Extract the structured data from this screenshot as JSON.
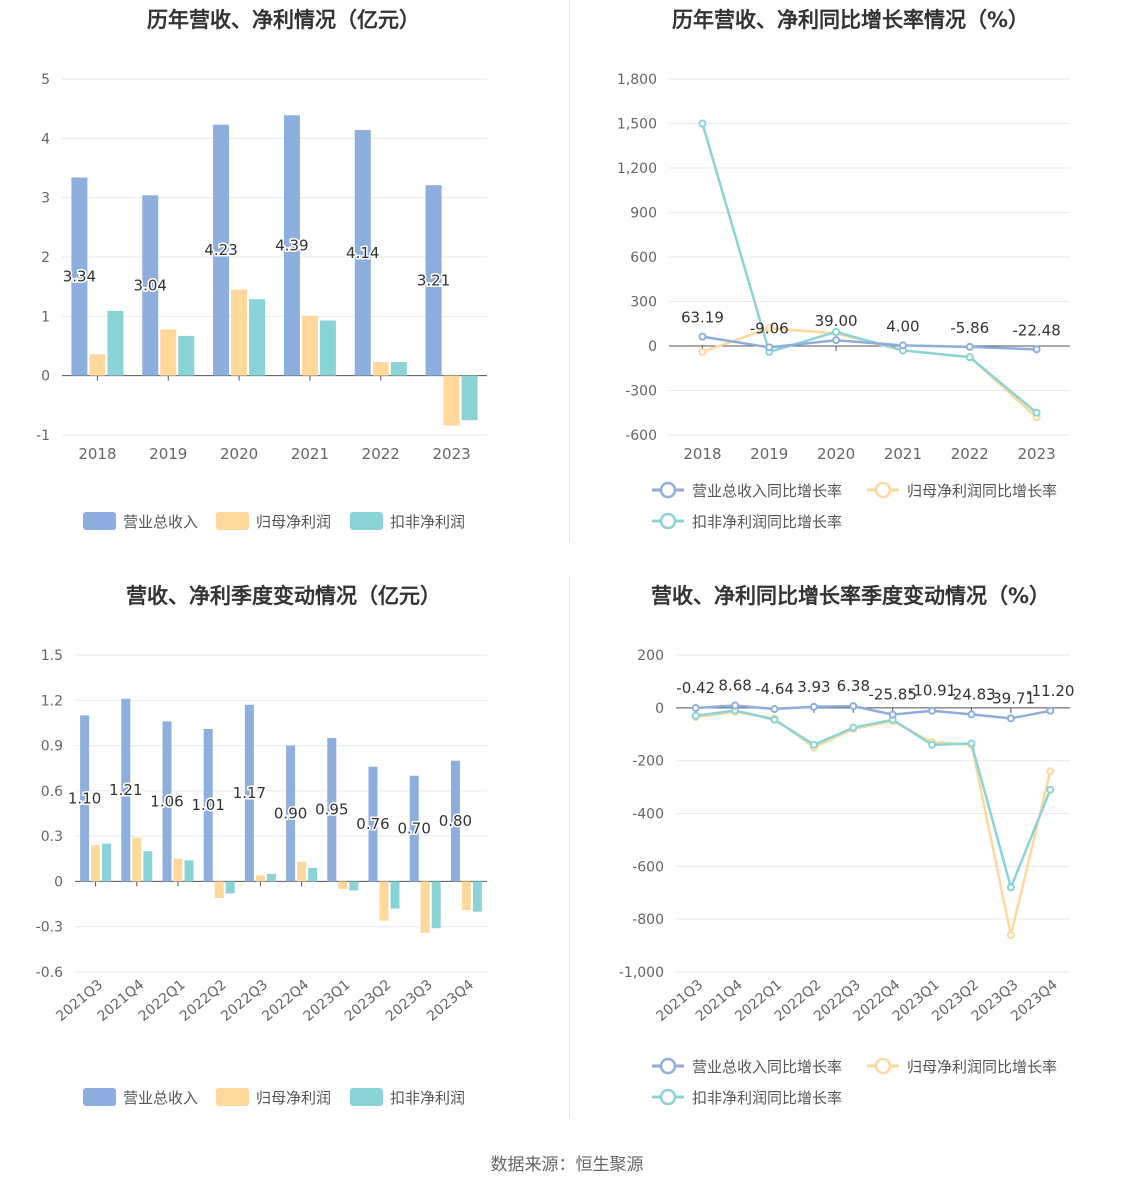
{
  "source": "数据来源：恒生聚源",
  "chart_data": [
    {
      "type": "bar",
      "title": "历年营收、净利情况（亿元）",
      "categories": [
        "2018",
        "2019",
        "2020",
        "2021",
        "2022",
        "2023"
      ],
      "ylim": [
        -1,
        5
      ],
      "yticks": [
        "5",
        "4",
        "3",
        "2",
        "1",
        "0",
        "-1"
      ],
      "series": [
        {
          "name": "营业总收入",
          "color": "#8eaedd",
          "values": [
            3.34,
            3.04,
            4.23,
            4.39,
            4.14,
            3.21
          ],
          "labels": [
            "3.34",
            "3.04",
            "4.23",
            "4.39",
            "4.14",
            "3.21"
          ]
        },
        {
          "name": "归母净利润",
          "color": "#ffd89c",
          "values": [
            0.36,
            0.78,
            1.45,
            1.01,
            0.23,
            -0.84
          ]
        },
        {
          "name": "扣非净利润",
          "color": "#8ad4d8",
          "values": [
            1.09,
            0.67,
            1.29,
            0.93,
            0.23,
            -0.75
          ]
        }
      ],
      "legend": "bottom"
    },
    {
      "type": "line",
      "title": "历年营收、净利同比增长率情况（%）",
      "categories": [
        "2018",
        "2019",
        "2020",
        "2021",
        "2022",
        "2023"
      ],
      "ylim": [
        -600,
        1800
      ],
      "yticks": [
        "1,800",
        "1,500",
        "1,200",
        "900",
        "600",
        "300",
        "0",
        "-300",
        "-600"
      ],
      "series": [
        {
          "name": "营业总收入同比增长率",
          "color": "#8eaedd",
          "values": [
            63.19,
            -9.06,
            39.0,
            4.0,
            -5.86,
            -22.48
          ],
          "labels": [
            "63.19",
            "-9.06",
            "39.00",
            "4.00",
            "-5.86",
            "-22.48"
          ]
        },
        {
          "name": "归母净利润同比增长率",
          "color": "#ffd89c",
          "values": [
            -40,
            120,
            85,
            -30,
            -75,
            -480
          ]
        },
        {
          "name": "扣非净利润同比增长率",
          "color": "#8ad4d8",
          "values": [
            1500,
            -40,
            95,
            -30,
            -75,
            -450
          ]
        }
      ],
      "legend": "bottom"
    },
    {
      "type": "bar",
      "title": "营收、净利季度变动情况（亿元）",
      "categories": [
        "2021Q3",
        "2021Q4",
        "2022Q1",
        "2022Q2",
        "2022Q3",
        "2022Q4",
        "2023Q1",
        "2023Q2",
        "2023Q3",
        "2023Q4"
      ],
      "ylim": [
        -0.6,
        1.5
      ],
      "yticks": [
        "1.5",
        "1.2",
        "0.9",
        "0.6",
        "0.3",
        "0",
        "-0.3",
        "-0.6"
      ],
      "series": [
        {
          "name": "营业总收入",
          "color": "#8eaedd",
          "values": [
            1.1,
            1.21,
            1.06,
            1.01,
            1.17,
            0.9,
            0.95,
            0.76,
            0.7,
            0.8
          ],
          "labels": [
            "1.10",
            "1.21",
            "1.06",
            "1.01",
            "1.17",
            "0.90",
            "0.95",
            "0.76",
            "0.70",
            "0.80"
          ]
        },
        {
          "name": "归母净利润",
          "color": "#ffd89c",
          "values": [
            0.24,
            0.29,
            0.15,
            -0.11,
            0.04,
            0.13,
            -0.05,
            -0.26,
            -0.34,
            -0.19
          ]
        },
        {
          "name": "扣非净利润",
          "color": "#8ad4d8",
          "values": [
            0.25,
            0.2,
            0.14,
            -0.08,
            0.05,
            0.09,
            -0.06,
            -0.18,
            -0.31,
            -0.2
          ]
        }
      ],
      "legend": "bottom"
    },
    {
      "type": "line",
      "title": "营收、净利同比增长率季度变动情况（%）",
      "categories": [
        "2021Q3",
        "2021Q4",
        "2022Q1",
        "2022Q2",
        "2022Q3",
        "2022Q4",
        "2023Q1",
        "2023Q2",
        "2023Q3",
        "2023Q4"
      ],
      "ylim": [
        -1000,
        200
      ],
      "yticks": [
        "200",
        "0",
        "-200",
        "-400",
        "-600",
        "-800",
        "-1,000"
      ],
      "series": [
        {
          "name": "营业总收入同比增长率",
          "color": "#8eaedd",
          "values": [
            -0.42,
            8.68,
            -4.64,
            3.93,
            6.38,
            -25.85,
            -10.91,
            -24.83,
            -39.71,
            -11.2
          ],
          "labels": [
            "-0.42",
            "8.68",
            "-4.64",
            "3.93",
            "6.38",
            "-25.85",
            "-10.91",
            "-24.83",
            "-39.71",
            "-11.20"
          ]
        },
        {
          "name": "归母净利润同比增长率",
          "color": "#ffd89c",
          "values": [
            -35,
            -15,
            -40,
            -150,
            -80,
            -50,
            -130,
            -140,
            -860,
            -240
          ]
        },
        {
          "name": "扣非净利润同比增长率",
          "color": "#8ad4d8",
          "values": [
            -30,
            -10,
            -45,
            -140,
            -75,
            -45,
            -140,
            -135,
            -680,
            -310
          ]
        }
      ],
      "legend": "bottom"
    }
  ]
}
